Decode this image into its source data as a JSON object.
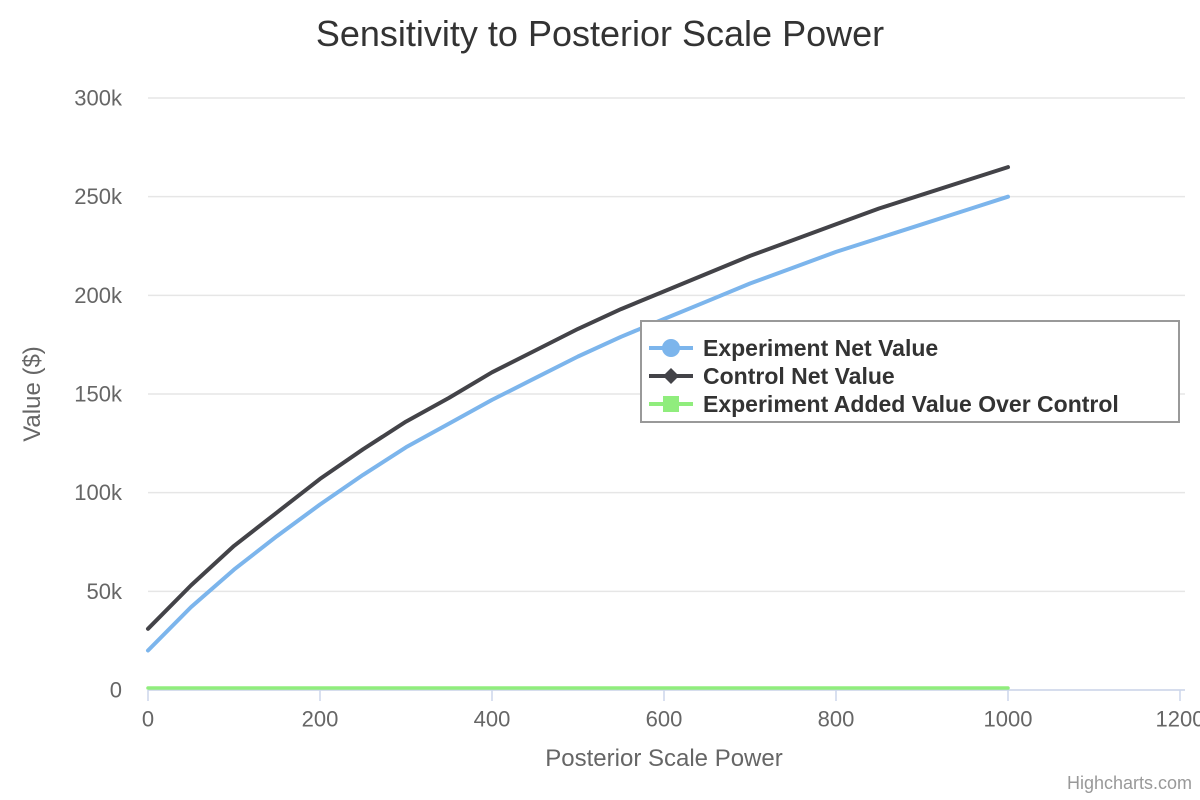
{
  "credits": {
    "label": "Highcharts.com"
  },
  "colors": {
    "title": "#333333",
    "axis_label": "#666666",
    "axis_title": "#666666",
    "axis_line": "#ccd6eb",
    "gridline": "#e6e6e6",
    "legend_border": "#999999",
    "legend_background": "#ffffff",
    "legend_text": "#333333",
    "series_blue": "#7cb5ec",
    "series_dark": "#434348",
    "series_green": "#90ed7d"
  },
  "chart_data": {
    "type": "line",
    "title": "Sensitivity to Posterior Scale Power",
    "xlabel": "Posterior Scale Power",
    "ylabel": "Value ($)",
    "xlim": [
      0,
      1200
    ],
    "ylim": [
      0,
      300000
    ],
    "grid": "horizontal-only",
    "legend_position": "inside-right",
    "x_ticks": [
      0,
      200,
      400,
      600,
      800,
      1000,
      1200
    ],
    "x_tick_labels": [
      "0",
      "200",
      "400",
      "600",
      "800",
      "1000",
      "1200"
    ],
    "y_ticks": [
      0,
      50000,
      100000,
      150000,
      200000,
      250000,
      300000
    ],
    "y_tick_labels": [
      "0",
      "50k",
      "100k",
      "150k",
      "200k",
      "250k",
      "300k"
    ],
    "x": [
      0,
      50,
      100,
      150,
      200,
      250,
      300,
      350,
      400,
      450,
      500,
      550,
      600,
      650,
      700,
      750,
      800,
      850,
      900,
      950,
      1000
    ],
    "series": [
      {
        "name": "Experiment Net Value",
        "color": "#7cb5ec",
        "marker": "circle",
        "values": [
          20000,
          42000,
          61000,
          78000,
          94000,
          109000,
          123000,
          135000,
          147000,
          158000,
          169000,
          179000,
          188000,
          197000,
          206000,
          214000,
          222000,
          229000,
          236000,
          243000,
          250000
        ]
      },
      {
        "name": "Control Net Value",
        "color": "#434348",
        "marker": "diamond",
        "values": [
          31000,
          53000,
          73000,
          90000,
          107000,
          122000,
          136000,
          148000,
          161000,
          172000,
          183000,
          193000,
          202000,
          211000,
          220000,
          228000,
          236000,
          244000,
          251000,
          258000,
          265000
        ]
      },
      {
        "name": "Experiment Added Value Over Control",
        "color": "#90ed7d",
        "marker": "square",
        "values": [
          1000,
          1000,
          1000,
          1000,
          1000,
          1000,
          1000,
          1000,
          1000,
          1000,
          1000,
          1000,
          1000,
          1000,
          1000,
          1000,
          1000,
          1000,
          1000,
          1000,
          1000
        ]
      }
    ]
  }
}
